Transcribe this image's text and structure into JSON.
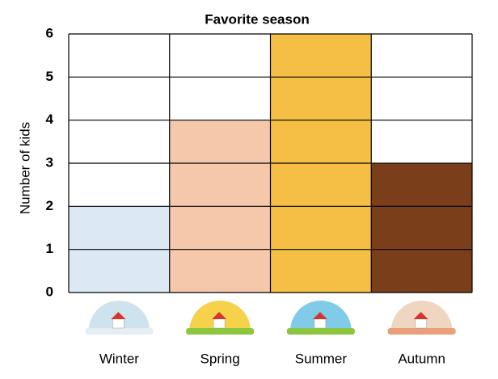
{
  "chart_data": {
    "type": "bar",
    "title": "Favorite season",
    "y_label": "Number of kids",
    "categories": [
      "Winter",
      "Spring",
      "Summer",
      "Autumn"
    ],
    "values": [
      2,
      4,
      6,
      3
    ],
    "colors": [
      "#dde8f5",
      "#f6c8ab",
      "#f5bf45",
      "#7a3e1b"
    ],
    "ylim": [
      0,
      6
    ],
    "yticks": [
      0,
      1,
      2,
      3,
      4,
      5,
      6
    ],
    "grid": true
  }
}
